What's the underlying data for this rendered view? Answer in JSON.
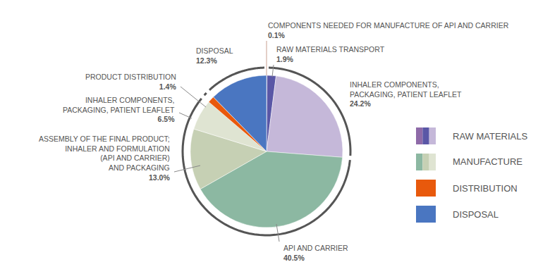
{
  "chart_data": {
    "type": "pie",
    "categories": [
      "COMPONENTS NEEDED FOR MANUFACTURE OF API AND CARRIER",
      "RAW MATERIALS TRANSPORT",
      "INHALER COMPONENTS,\nPACKAGING, PATIENT LEAFLET",
      "API AND CARRIER",
      "ASSEMBLY OF THE FINAL PRODUCT;\nINHALER AND FORMULATION\n(API AND CARRIER)\nAND PACKAGING",
      "INHALER COMPONENTS,\nPACKAGING, PATIENT LEAFLET",
      "PRODUCT DISTRIBUTION",
      "DISPOSAL"
    ],
    "values": [
      0.1,
      1.9,
      24.2,
      40.5,
      13.0,
      6.5,
      1.4,
      12.3
    ],
    "value_labels": [
      "0.1%",
      "1.9%",
      "24.2%",
      "40.5%",
      "13.0%",
      "6.5%",
      "1.4%",
      "12.3%"
    ],
    "colors": [
      "#8e6aa8",
      "#5a57a6",
      "#c5b8d9",
      "#8cb8a2",
      "#c6d0b4",
      "#dfe4d2",
      "#e8590c",
      "#4a76c1"
    ],
    "data_labels": true,
    "legend": "right",
    "groups": [
      {
        "name": "RAW MATERIALS",
        "colors": [
          "#8e6aa8",
          "#5a57a6",
          "#c5b8d9"
        ]
      },
      {
        "name": "MANUFACTURE",
        "colors": [
          "#8cb8a2",
          "#c6d0b4",
          "#dfe4d2"
        ]
      },
      {
        "name": "DISTRIBUTION",
        "colors": [
          "#e8590c"
        ]
      },
      {
        "name": "DISPOSAL",
        "colors": [
          "#4a76c1"
        ]
      }
    ]
  }
}
